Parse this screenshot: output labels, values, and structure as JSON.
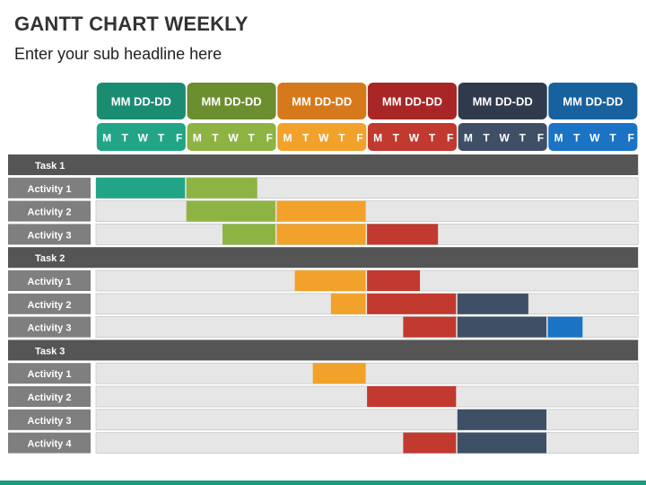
{
  "header": {
    "title": "GANTT CHART WEEKLY",
    "subtitle": "Enter your sub headline here"
  },
  "chart_data": {
    "type": "gantt",
    "weeks": [
      {
        "label": "MM DD-DD",
        "days": [
          "M",
          "T",
          "W",
          "T",
          "F"
        ],
        "color": "#1a8c72",
        "day_color": "#22a586"
      },
      {
        "label": "MM DD-DD",
        "days": [
          "M",
          "T",
          "W",
          "T",
          "F"
        ],
        "color": "#6b8e2f",
        "day_color": "#8db443"
      },
      {
        "label": "MM DD-DD",
        "days": [
          "M",
          "T",
          "W",
          "T",
          "F"
        ],
        "color": "#d6791a",
        "day_color": "#f2a22a"
      },
      {
        "label": "MM DD-DD",
        "days": [
          "M",
          "T",
          "W",
          "T",
          "F"
        ],
        "color": "#a82626",
        "day_color": "#c2392f"
      },
      {
        "label": "MM DD-DD",
        "days": [
          "M",
          "T",
          "W",
          "T",
          "F"
        ],
        "color": "#2f3b4d",
        "day_color": "#3e4f66"
      },
      {
        "label": "MM DD-DD",
        "days": [
          "M",
          "T",
          "W",
          "T",
          "F"
        ],
        "color": "#17619e",
        "day_color": "#1a73c5"
      }
    ],
    "groups": [
      {
        "task": "Task 1",
        "activities": [
          {
            "label": "Activity 1",
            "start_day": 0,
            "end_day": 9
          },
          {
            "label": "Activity 2",
            "start_day": 5,
            "end_day": 15
          },
          {
            "label": "Activity 3",
            "start_day": 7,
            "end_day": 19
          }
        ]
      },
      {
        "task": "Task 2",
        "activities": [
          {
            "label": "Activity 1",
            "start_day": 11,
            "end_day": 18
          },
          {
            "label": "Activity 2",
            "start_day": 13,
            "end_day": 24
          },
          {
            "label": "Activity 3",
            "start_day": 17,
            "end_day": 27
          }
        ]
      },
      {
        "task": "Task 3",
        "activities": [
          {
            "label": "Activity 1",
            "start_day": 12,
            "end_day": 15
          },
          {
            "label": "Activity 2",
            "start_day": 15,
            "end_day": 20
          },
          {
            "label": "Activity 3",
            "start_day": 20,
            "end_day": 25
          },
          {
            "label": "Activity 4",
            "start_day": 17,
            "end_day": 25
          }
        ]
      }
    ]
  }
}
